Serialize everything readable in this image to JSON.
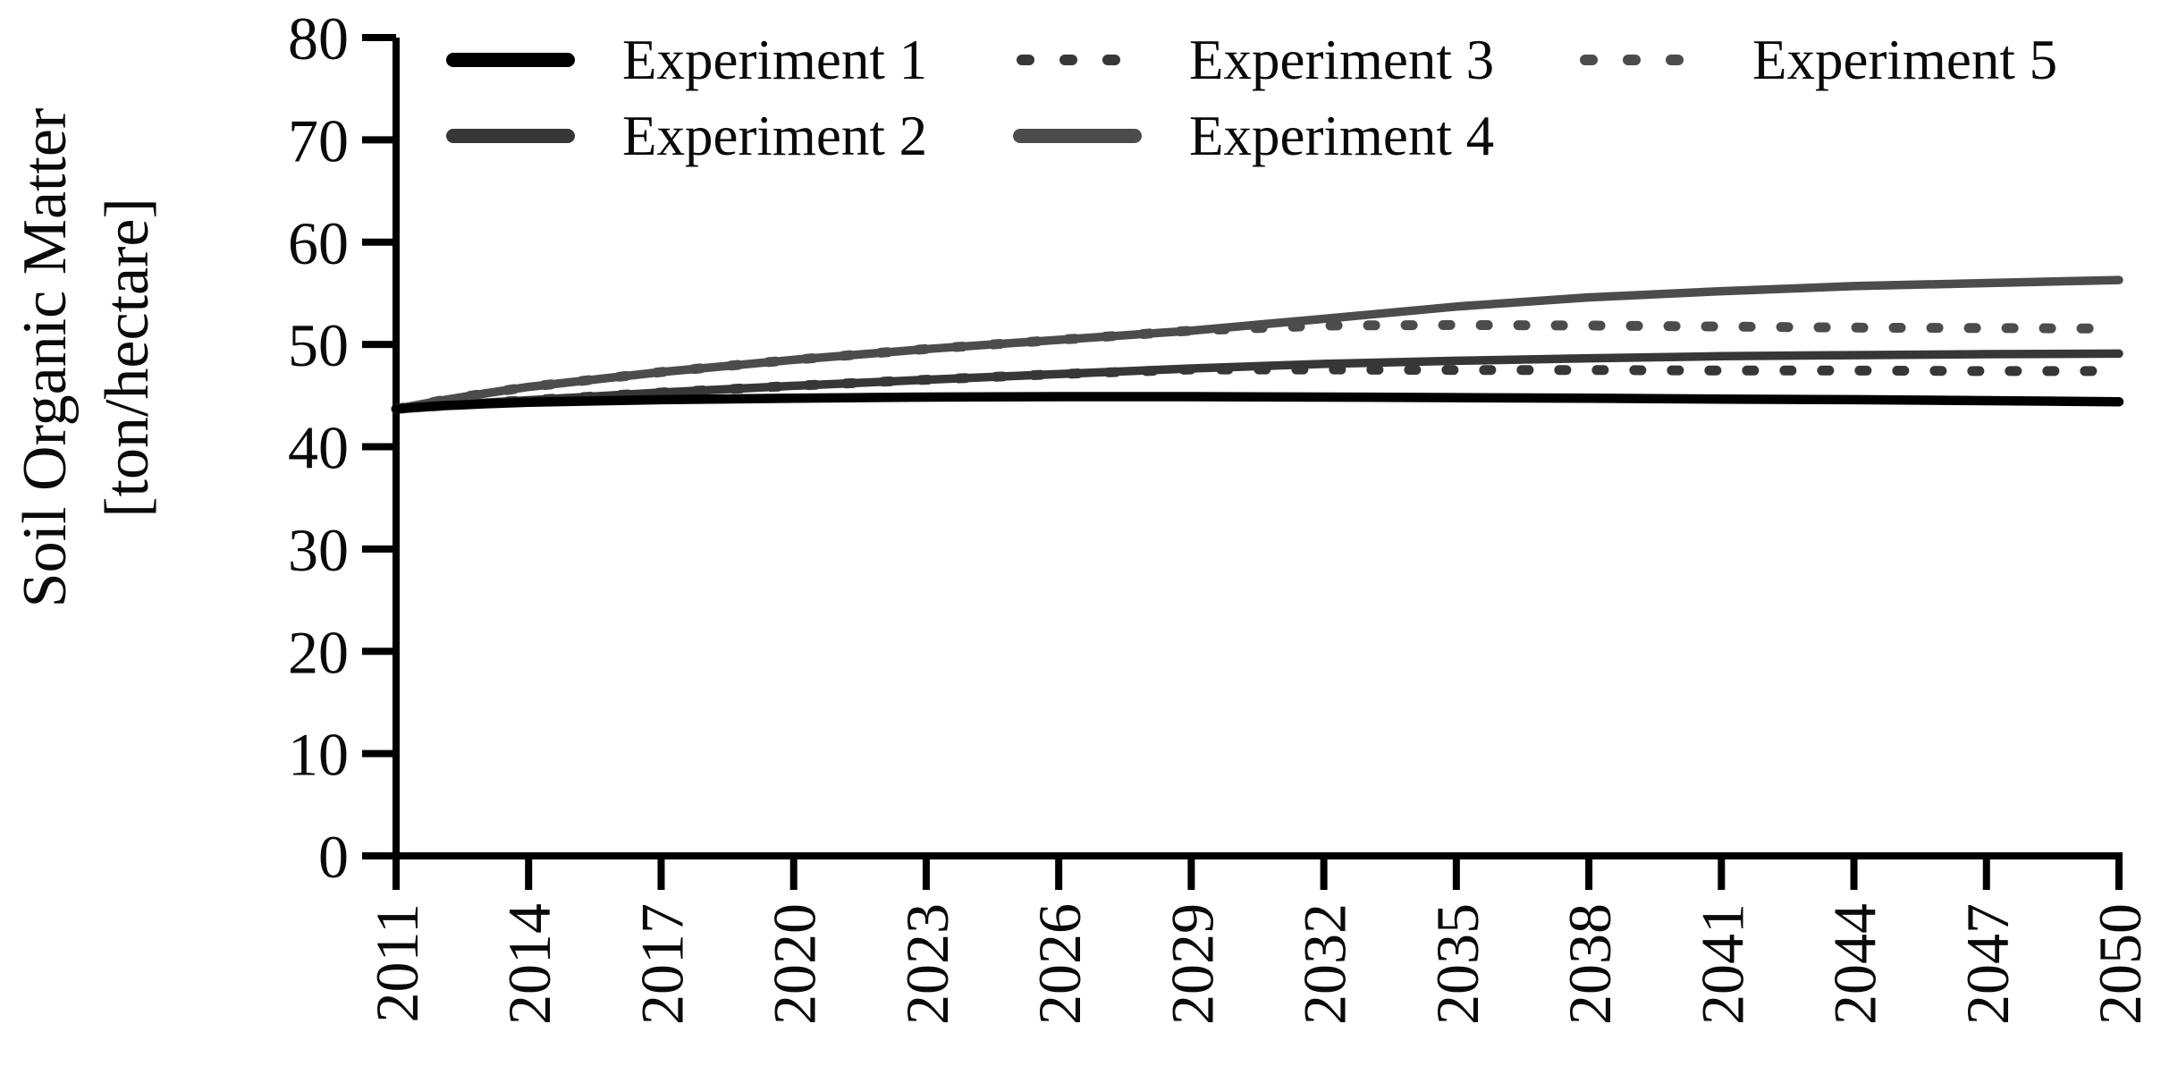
{
  "chart_data": {
    "type": "line",
    "title": "",
    "ylabel_line1": "Soil Organic Matter",
    "ylabel_line2": "[ton/hectare]",
    "xlabel": "",
    "xlim": [
      2011,
      2050
    ],
    "ylim": [
      0,
      80
    ],
    "yticks": [
      0,
      10,
      20,
      30,
      40,
      50,
      60,
      70,
      80
    ],
    "xticks": [
      2011,
      2014,
      2017,
      2020,
      2023,
      2026,
      2029,
      2032,
      2035,
      2038,
      2041,
      2044,
      2047,
      2050
    ],
    "grid": false,
    "legend_position": "inside top, 3 columns by 2 rows",
    "axis_color": "#000000",
    "x": [
      2011,
      2012,
      2013,
      2014,
      2017,
      2020,
      2023,
      2026,
      2029,
      2032,
      2035,
      2038,
      2041,
      2044,
      2047,
      2050
    ],
    "series": [
      {
        "name": "Experiment 1",
        "style": "solid",
        "color": "#000000",
        "values": [
          43.7,
          44.0,
          44.2,
          44.35,
          44.6,
          44.75,
          44.85,
          44.9,
          44.9,
          44.85,
          44.8,
          44.75,
          44.65,
          44.6,
          44.5,
          44.4
        ]
      },
      {
        "name": "Experiment 2",
        "style": "solid",
        "color": "#373737",
        "values": [
          43.7,
          44.0,
          44.3,
          44.55,
          45.3,
          45.95,
          46.55,
          47.1,
          47.65,
          48.1,
          48.4,
          48.65,
          48.85,
          48.95,
          49.05,
          49.1
        ]
      },
      {
        "name": "Experiment 3",
        "style": "dotted",
        "color": "#373737",
        "values": [
          43.7,
          44.0,
          44.3,
          44.55,
          45.3,
          45.95,
          46.55,
          47.1,
          47.55,
          47.55,
          47.5,
          47.5,
          47.45,
          47.45,
          47.4,
          47.4
        ]
      },
      {
        "name": "Experiment 4",
        "style": "solid",
        "color": "#4c4c4c",
        "values": [
          43.7,
          44.5,
          45.2,
          45.85,
          47.3,
          48.5,
          49.55,
          50.45,
          51.35,
          52.5,
          53.7,
          54.6,
          55.2,
          55.7,
          56.0,
          56.3
        ]
      },
      {
        "name": "Experiment 5",
        "style": "dotted",
        "color": "#4c4c4c",
        "values": [
          43.7,
          44.5,
          45.2,
          45.85,
          47.3,
          48.5,
          49.55,
          50.45,
          51.35,
          51.85,
          51.9,
          51.85,
          51.75,
          51.65,
          51.6,
          51.55
        ]
      }
    ]
  }
}
